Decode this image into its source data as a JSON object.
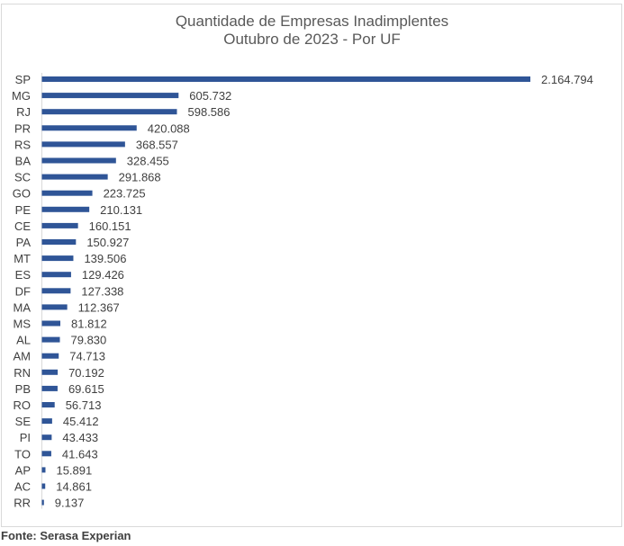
{
  "chart_data": {
    "type": "bar",
    "orientation": "horizontal",
    "title": "Quantidade de Empresas Inadimplentes",
    "subtitle": "Outubro de 2023 - Por UF",
    "categories": [
      "SP",
      "MG",
      "RJ",
      "PR",
      "RS",
      "BA",
      "SC",
      "GO",
      "PE",
      "CE",
      "PA",
      "MT",
      "ES",
      "DF",
      "MA",
      "MS",
      "AL",
      "AM",
      "RN",
      "PB",
      "RO",
      "SE",
      "PI",
      "TO",
      "AP",
      "AC",
      "RR"
    ],
    "values": [
      2164794,
      605732,
      598586,
      420088,
      368557,
      328455,
      291868,
      223725,
      210131,
      160151,
      150927,
      139506,
      129426,
      127338,
      112367,
      81812,
      79830,
      74713,
      70192,
      69615,
      56713,
      45412,
      43433,
      41643,
      15891,
      14861,
      9137
    ],
    "value_labels": [
      "2.164.794",
      "605.732",
      "598.586",
      "420.088",
      "368.557",
      "328.455",
      "291.868",
      "223.725",
      "210.131",
      "160.151",
      "150.927",
      "139.506",
      "129.426",
      "127.338",
      "112.367",
      "81.812",
      "79.830",
      "74.713",
      "70.192",
      "69.615",
      "56.713",
      "45.412",
      "43.433",
      "41.643",
      "15.891",
      "14.861",
      "9.137"
    ],
    "bar_color": "#2f5597",
    "grid": false,
    "legend": "none"
  },
  "source": "Fonte: Serasa Experian"
}
